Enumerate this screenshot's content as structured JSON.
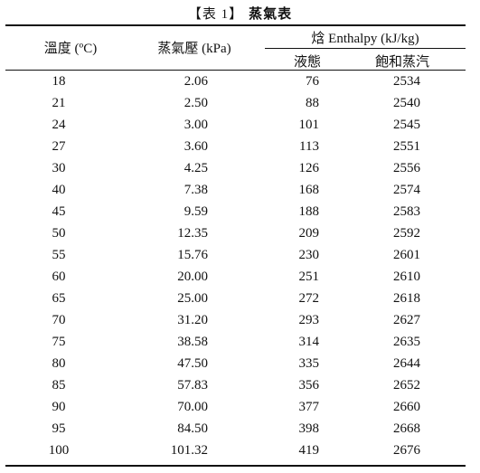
{
  "title": {
    "prefix": "【表 1】",
    "name": "蒸氣表"
  },
  "headers": {
    "temperature": "溫度 (ºC)",
    "pressure": "蒸氣壓 (kPa)",
    "enthalpy": "焓 Enthalpy (kJ/kg)",
    "liquid": "液態",
    "vapor": "飽和蒸汽"
  },
  "rows": [
    [
      "18",
      "2.06",
      "76",
      "2534"
    ],
    [
      "21",
      "2.50",
      "88",
      "2540"
    ],
    [
      "24",
      "3.00",
      "101",
      "2545"
    ],
    [
      "27",
      "3.60",
      "113",
      "2551"
    ],
    [
      "30",
      "4.25",
      "126",
      "2556"
    ],
    [
      "40",
      "7.38",
      "168",
      "2574"
    ],
    [
      "45",
      "9.59",
      "188",
      "2583"
    ],
    [
      "50",
      "12.35",
      "209",
      "2592"
    ],
    [
      "55",
      "15.76",
      "230",
      "2601"
    ],
    [
      "60",
      "20.00",
      "251",
      "2610"
    ],
    [
      "65",
      "25.00",
      "272",
      "2618"
    ],
    [
      "70",
      "31.20",
      "293",
      "2627"
    ],
    [
      "75",
      "38.58",
      "314",
      "2635"
    ],
    [
      "80",
      "47.50",
      "335",
      "2644"
    ],
    [
      "85",
      "57.83",
      "356",
      "2652"
    ],
    [
      "90",
      "70.00",
      "377",
      "2660"
    ],
    [
      "95",
      "84.50",
      "398",
      "2668"
    ],
    [
      "100",
      "101.32",
      "419",
      "2676"
    ]
  ]
}
